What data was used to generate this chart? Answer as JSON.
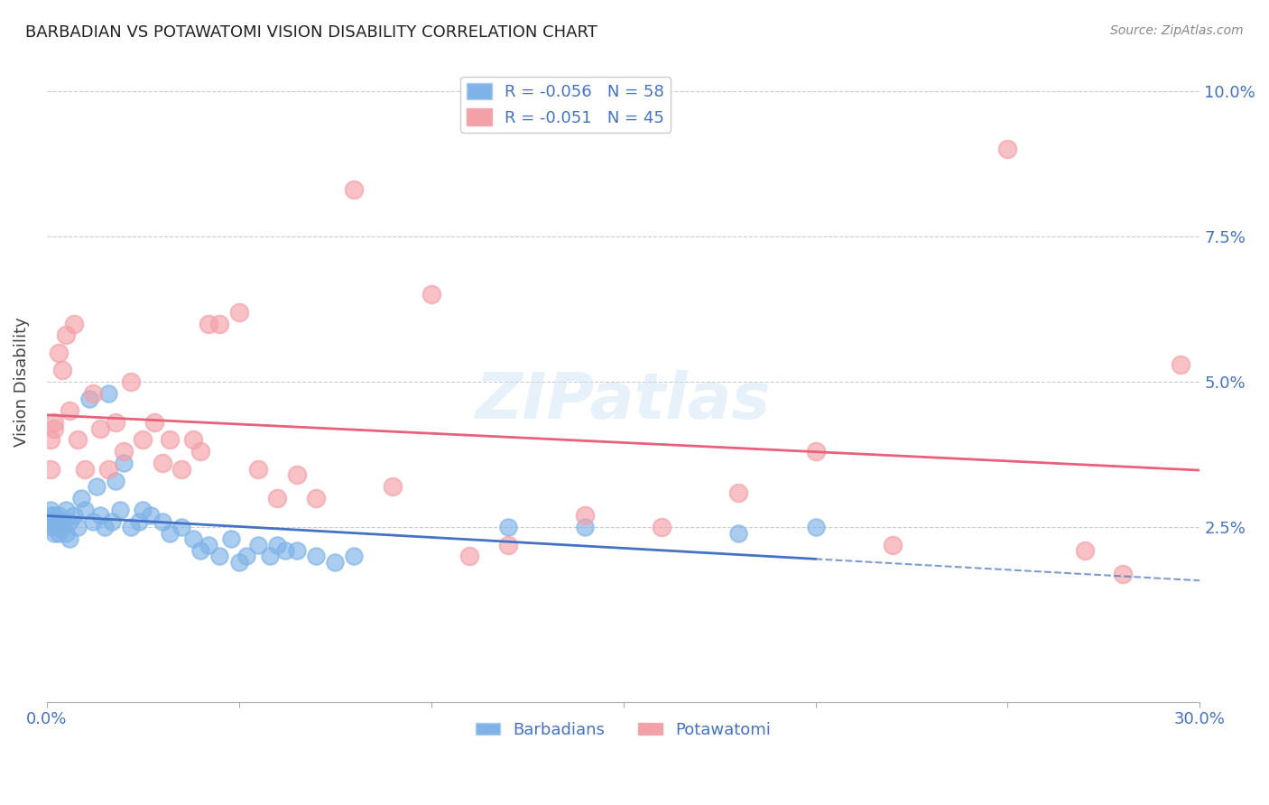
{
  "title": "BARBADIAN VS POTAWATOMI VISION DISABILITY CORRELATION CHART",
  "source": "Source: ZipAtlas.com",
  "ylabel": "Vision Disability",
  "xlim": [
    0.0,
    0.3
  ],
  "ylim": [
    -0.005,
    0.105
  ],
  "x_ticks": [
    0.0,
    0.05,
    0.1,
    0.15,
    0.2,
    0.25,
    0.3
  ],
  "y_ticks": [
    0.025,
    0.05,
    0.075,
    0.1
  ],
  "y_tick_labels": [
    "2.5%",
    "5.0%",
    "7.5%",
    "10.0%"
  ],
  "barbadian_color": "#7fb3e8",
  "potawatomi_color": "#f4a0a8",
  "barbadian_line_color": "#4472c4",
  "potawatomi_line_color": "#e8607a",
  "legend_label_barbadian": "R = -0.056   N = 58",
  "legend_label_potawatomi": "R = -0.051   N = 45",
  "watermark": "ZIPatlas",
  "background_color": "#ffffff",
  "grid_color": "#cccccc",
  "tick_color": "#4472c4",
  "barbadian_x": [
    0.001,
    0.001,
    0.001,
    0.001,
    0.002,
    0.002,
    0.002,
    0.002,
    0.003,
    0.003,
    0.003,
    0.003,
    0.004,
    0.004,
    0.005,
    0.005,
    0.006,
    0.006,
    0.007,
    0.008,
    0.009,
    0.01,
    0.011,
    0.012,
    0.013,
    0.014,
    0.015,
    0.016,
    0.017,
    0.018,
    0.019,
    0.02,
    0.022,
    0.024,
    0.025,
    0.027,
    0.03,
    0.032,
    0.035,
    0.038,
    0.04,
    0.042,
    0.045,
    0.048,
    0.05,
    0.052,
    0.055,
    0.058,
    0.06,
    0.062,
    0.065,
    0.07,
    0.075,
    0.08,
    0.12,
    0.14,
    0.18,
    0.2
  ],
  "barbadian_y": [
    0.026,
    0.027,
    0.025,
    0.028,
    0.026,
    0.027,
    0.025,
    0.024,
    0.026,
    0.025,
    0.024,
    0.027,
    0.026,
    0.025,
    0.028,
    0.024,
    0.026,
    0.023,
    0.027,
    0.025,
    0.03,
    0.028,
    0.047,
    0.026,
    0.032,
    0.027,
    0.025,
    0.048,
    0.026,
    0.033,
    0.028,
    0.036,
    0.025,
    0.026,
    0.028,
    0.027,
    0.026,
    0.024,
    0.025,
    0.023,
    0.021,
    0.022,
    0.02,
    0.023,
    0.019,
    0.02,
    0.022,
    0.02,
    0.022,
    0.021,
    0.021,
    0.02,
    0.019,
    0.02,
    0.025,
    0.025,
    0.024,
    0.025
  ],
  "potawatomi_x": [
    0.001,
    0.001,
    0.002,
    0.002,
    0.003,
    0.004,
    0.005,
    0.006,
    0.007,
    0.008,
    0.01,
    0.012,
    0.014,
    0.016,
    0.018,
    0.02,
    0.022,
    0.025,
    0.028,
    0.03,
    0.032,
    0.035,
    0.038,
    0.04,
    0.042,
    0.045,
    0.05,
    0.055,
    0.06,
    0.065,
    0.07,
    0.08,
    0.09,
    0.1,
    0.11,
    0.12,
    0.14,
    0.16,
    0.18,
    0.2,
    0.22,
    0.25,
    0.27,
    0.28,
    0.295
  ],
  "potawatomi_y": [
    0.04,
    0.035,
    0.042,
    0.043,
    0.055,
    0.052,
    0.058,
    0.045,
    0.06,
    0.04,
    0.035,
    0.048,
    0.042,
    0.035,
    0.043,
    0.038,
    0.05,
    0.04,
    0.043,
    0.036,
    0.04,
    0.035,
    0.04,
    0.038,
    0.06,
    0.06,
    0.062,
    0.035,
    0.03,
    0.034,
    0.03,
    0.083,
    0.032,
    0.065,
    0.02,
    0.022,
    0.027,
    0.025,
    0.031,
    0.038,
    0.022,
    0.09,
    0.021,
    0.017,
    0.053
  ]
}
